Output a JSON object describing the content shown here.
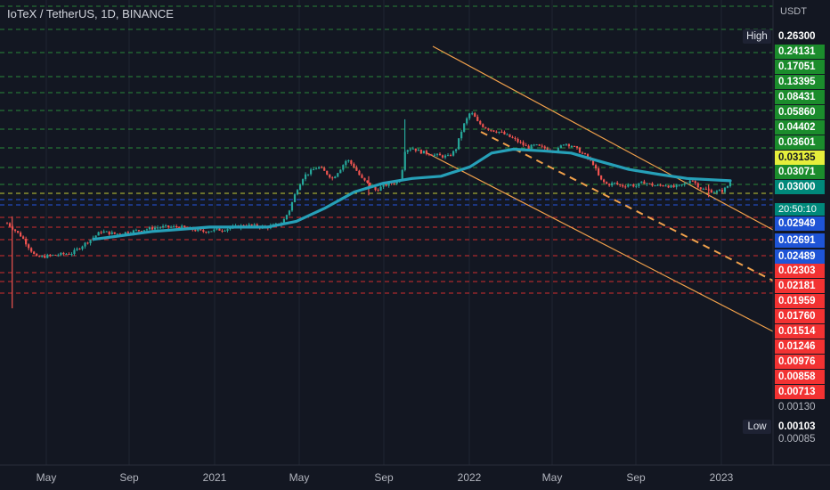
{
  "header": {
    "title": "IoTeX / TetherUS, 1D, BINANCE"
  },
  "axis": {
    "currency": "USDT",
    "high_label": "High",
    "low_label": "Low",
    "countdown": "20:50:10"
  },
  "x_labels": [
    "May",
    "Sep",
    "2021",
    "May",
    "Sep",
    "2022",
    "May",
    "Sep",
    "2023"
  ],
  "price_tags": [
    {
      "value": "0.26300",
      "bg": "#131722",
      "fg": "#ffffff"
    },
    {
      "value": "0.24131",
      "bg": "#1b8c2c",
      "fg": "#ffffff"
    },
    {
      "value": "0.17051",
      "bg": "#1b8c2c",
      "fg": "#ffffff"
    },
    {
      "value": "0.13395",
      "bg": "#1b8c2c",
      "fg": "#ffffff"
    },
    {
      "value": "0.08431",
      "bg": "#1b8c2c",
      "fg": "#ffffff"
    },
    {
      "value": "0.05860",
      "bg": "#1b8c2c",
      "fg": "#ffffff"
    },
    {
      "value": "0.04402",
      "bg": "#1b8c2c",
      "fg": "#ffffff"
    },
    {
      "value": "0.03601",
      "bg": "#1b8c2c",
      "fg": "#ffffff"
    },
    {
      "value": "0.03135",
      "bg": "#e6ee3b",
      "fg": "#131722"
    },
    {
      "value": "0.03071",
      "bg": "#1b8c2c",
      "fg": "#ffffff"
    },
    {
      "value": "0.03000",
      "bg": "#00897b",
      "fg": "#ffffff"
    },
    {
      "value": "0.02949",
      "bg": "#1e54d6",
      "fg": "#ffffff"
    },
    {
      "value": "0.02691",
      "bg": "#1e54d6",
      "fg": "#ffffff"
    },
    {
      "value": "0.02489",
      "bg": "#1e54d6",
      "fg": "#ffffff"
    },
    {
      "value": "0.02303",
      "bg": "#f23232",
      "fg": "#ffffff"
    },
    {
      "value": "0.02181",
      "bg": "#f23232",
      "fg": "#ffffff"
    },
    {
      "value": "0.01959",
      "bg": "#f23232",
      "fg": "#ffffff"
    },
    {
      "value": "0.01760",
      "bg": "#f23232",
      "fg": "#ffffff"
    },
    {
      "value": "0.01514",
      "bg": "#f23232",
      "fg": "#ffffff"
    },
    {
      "value": "0.01246",
      "bg": "#f23232",
      "fg": "#ffffff"
    },
    {
      "value": "0.00976",
      "bg": "#f23232",
      "fg": "#ffffff"
    },
    {
      "value": "0.00858",
      "bg": "#f23232",
      "fg": "#ffffff"
    },
    {
      "value": "0.00713",
      "bg": "#f23232",
      "fg": "#ffffff"
    },
    {
      "value": "0.00130",
      "bg": "",
      "fg": "#b2b5be"
    },
    {
      "value": "0.00103",
      "bg": "#131722",
      "fg": "#ffffff"
    },
    {
      "value": "0.00085",
      "bg": "",
      "fg": "#b2b5be"
    }
  ],
  "colors": {
    "background": "#131722",
    "grid": "#1f2433",
    "candle_up": "#26a69a",
    "candle_down": "#ef5350",
    "moving_average": "#26a0b8",
    "channel": "#f0a04b",
    "level_green": "#2e9c3e",
    "level_yellow": "#e6ee3b",
    "level_blue": "#2962ff",
    "level_red": "#f23232"
  },
  "chart_data": {
    "type": "candlestick",
    "title": "IoTeX / TetherUS, 1D, BINANCE",
    "currency": "USDT",
    "high": 0.263,
    "low": 0.00103,
    "last_price": 0.03,
    "countdown": "20:50:10",
    "x_ticks": [
      "May",
      "Sep",
      "2021",
      "May",
      "Sep",
      "2022",
      "May",
      "Sep",
      "2023"
    ],
    "levels": [
      {
        "value": 0.24131,
        "color": "green"
      },
      {
        "value": 0.17051,
        "color": "green"
      },
      {
        "value": 0.13395,
        "color": "green"
      },
      {
        "value": 0.08431,
        "color": "green"
      },
      {
        "value": 0.0586,
        "color": "green"
      },
      {
        "value": 0.04402,
        "color": "green"
      },
      {
        "value": 0.03601,
        "color": "green"
      },
      {
        "value": 0.03135,
        "color": "yellow"
      },
      {
        "value": 0.03071,
        "color": "green"
      },
      {
        "value": 0.02949,
        "color": "blue"
      },
      {
        "value": 0.02691,
        "color": "blue"
      },
      {
        "value": 0.02489,
        "color": "blue"
      },
      {
        "value": 0.02303,
        "color": "red"
      },
      {
        "value": 0.02181,
        "color": "red"
      },
      {
        "value": 0.01959,
        "color": "red"
      },
      {
        "value": 0.0176,
        "color": "red"
      },
      {
        "value": 0.01514,
        "color": "red"
      },
      {
        "value": 0.01246,
        "color": "red"
      },
      {
        "value": 0.00976,
        "color": "red"
      },
      {
        "value": 0.00858,
        "color": "red"
      },
      {
        "value": 0.00713,
        "color": "red"
      }
    ],
    "price_path": [
      [
        0.0,
        0.01
      ],
      [
        0.02,
        0.007
      ],
      [
        0.04,
        0.004
      ],
      [
        0.06,
        0.0042
      ],
      [
        0.09,
        0.0045
      ],
      [
        0.11,
        0.006
      ],
      [
        0.13,
        0.008
      ],
      [
        0.15,
        0.0075
      ],
      [
        0.18,
        0.0082
      ],
      [
        0.21,
        0.009
      ],
      [
        0.24,
        0.009
      ],
      [
        0.27,
        0.008
      ],
      [
        0.3,
        0.0085
      ],
      [
        0.33,
        0.0095
      ],
      [
        0.36,
        0.009
      ],
      [
        0.38,
        0.01
      ],
      [
        0.39,
        0.014
      ],
      [
        0.4,
        0.024
      ],
      [
        0.41,
        0.035
      ],
      [
        0.42,
        0.04
      ],
      [
        0.43,
        0.045
      ],
      [
        0.44,
        0.039
      ],
      [
        0.45,
        0.033
      ],
      [
        0.46,
        0.042
      ],
      [
        0.47,
        0.055
      ],
      [
        0.48,
        0.045
      ],
      [
        0.49,
        0.033
      ],
      [
        0.5,
        0.028
      ],
      [
        0.51,
        0.024
      ],
      [
        0.52,
        0.027
      ],
      [
        0.53,
        0.029
      ],
      [
        0.54,
        0.03
      ],
      [
        0.545,
        0.035
      ],
      [
        0.55,
        0.07
      ],
      [
        0.56,
        0.075
      ],
      [
        0.57,
        0.068
      ],
      [
        0.58,
        0.065
      ],
      [
        0.59,
        0.062
      ],
      [
        0.6,
        0.06
      ],
      [
        0.61,
        0.059
      ],
      [
        0.62,
        0.07
      ],
      [
        0.63,
        0.13
      ],
      [
        0.64,
        0.19
      ],
      [
        0.645,
        0.18
      ],
      [
        0.65,
        0.15
      ],
      [
        0.66,
        0.13
      ],
      [
        0.67,
        0.12
      ],
      [
        0.68,
        0.115
      ],
      [
        0.69,
        0.105
      ],
      [
        0.7,
        0.095
      ],
      [
        0.71,
        0.085
      ],
      [
        0.72,
        0.075
      ],
      [
        0.73,
        0.08
      ],
      [
        0.74,
        0.075
      ],
      [
        0.75,
        0.072
      ],
      [
        0.76,
        0.069
      ],
      [
        0.77,
        0.085
      ],
      [
        0.78,
        0.08
      ],
      [
        0.79,
        0.07
      ],
      [
        0.8,
        0.06
      ],
      [
        0.81,
        0.05
      ],
      [
        0.82,
        0.032
      ],
      [
        0.83,
        0.028
      ],
      [
        0.84,
        0.029
      ],
      [
        0.85,
        0.027
      ],
      [
        0.86,
        0.028
      ],
      [
        0.87,
        0.027
      ],
      [
        0.88,
        0.03
      ],
      [
        0.89,
        0.028
      ],
      [
        0.9,
        0.027
      ],
      [
        0.91,
        0.028
      ],
      [
        0.92,
        0.026
      ],
      [
        0.93,
        0.027
      ],
      [
        0.94,
        0.029
      ],
      [
        0.945,
        0.033
      ],
      [
        0.95,
        0.03
      ],
      [
        0.96,
        0.025
      ],
      [
        0.97,
        0.024
      ],
      [
        0.98,
        0.023
      ],
      [
        0.99,
        0.024
      ],
      [
        0.995,
        0.026
      ],
      [
        1.0,
        0.03
      ]
    ],
    "moving_average": [
      [
        0.12,
        0.0065
      ],
      [
        0.2,
        0.008
      ],
      [
        0.28,
        0.009
      ],
      [
        0.36,
        0.009
      ],
      [
        0.4,
        0.0105
      ],
      [
        0.44,
        0.015
      ],
      [
        0.48,
        0.023
      ],
      [
        0.52,
        0.029
      ],
      [
        0.56,
        0.033
      ],
      [
        0.6,
        0.035
      ],
      [
        0.64,
        0.045
      ],
      [
        0.67,
        0.065
      ],
      [
        0.7,
        0.072
      ],
      [
        0.74,
        0.069
      ],
      [
        0.78,
        0.065
      ],
      [
        0.82,
        0.052
      ],
      [
        0.86,
        0.042
      ],
      [
        0.9,
        0.037
      ],
      [
        0.94,
        0.033
      ],
      [
        1.0,
        0.031
      ]
    ]
  }
}
